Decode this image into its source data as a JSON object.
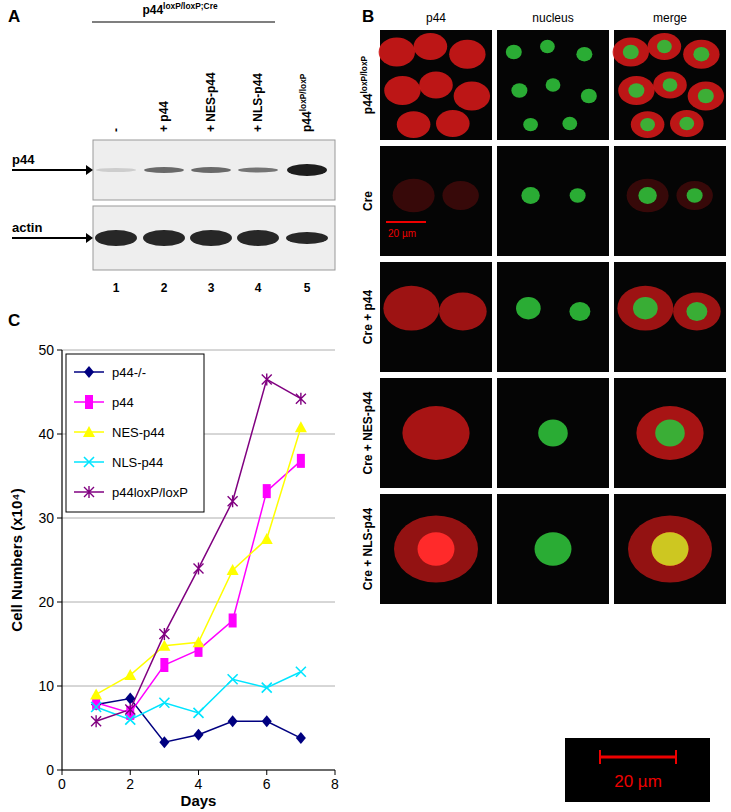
{
  "panels": {
    "a": {
      "label": "A",
      "header": {
        "text": "p44",
        "sup": "loxP/loxP;Cre"
      },
      "lanes": [
        {
          "text": "-"
        },
        {
          "text": "+ p44"
        },
        {
          "text": "+ NES-p44"
        },
        {
          "text": "+ NLS-p44"
        },
        {
          "text": "p44",
          "sup": "loxP/loxP"
        }
      ],
      "rows": [
        "p44",
        "actin"
      ],
      "lane_numbers": [
        1,
        2,
        3,
        4,
        5
      ]
    },
    "b": {
      "label": "B",
      "columns": [
        "p44",
        "nucleus",
        "merge"
      ],
      "rows": [
        {
          "text": "p44",
          "sup": "loxP/loxP"
        },
        {
          "text": "Cre"
        },
        {
          "text": "Cre + p44"
        },
        {
          "text": "Cre + NES-p44"
        },
        {
          "text": "Cre + NLS-p44"
        }
      ],
      "scale_bar": "20 µm"
    },
    "c": {
      "label": "C"
    }
  },
  "chart_data": {
    "type": "line",
    "x_label": "Days",
    "y_label": "Cell Numbers (x10⁴)",
    "x": [
      1,
      2,
      3,
      4,
      5,
      6,
      7
    ],
    "xlim": [
      0,
      8
    ],
    "xticks": [
      0,
      2,
      4,
      6,
      8
    ],
    "ylim": [
      0,
      50
    ],
    "yticks": [
      0,
      10,
      20,
      30,
      40,
      50
    ],
    "grid": true,
    "legend": "upper left",
    "series": [
      {
        "name": "p44-/-",
        "color": "#000080",
        "marker": "diamond",
        "line_style": "solid",
        "values": [
          7.8,
          8.5,
          3.3,
          4.2,
          5.8,
          5.8,
          3.8
        ]
      },
      {
        "name": "p44",
        "color": "#ff00ff",
        "marker": "square",
        "line_style": "solid",
        "values": [
          8,
          6.8,
          12.5,
          14.3,
          17.8,
          33.2,
          36.8
        ]
      },
      {
        "name": "NES-p44",
        "color": "#ffff00",
        "marker": "triangle",
        "line_style": "solid",
        "values": [
          9,
          11.3,
          14.8,
          15.2,
          23.8,
          27.5,
          40.8
        ]
      },
      {
        "name": "NLS-p44",
        "color": "#00e5ff",
        "marker": "x",
        "line_style": "solid",
        "values": [
          7.5,
          6,
          8,
          6.8,
          10.8,
          9.8,
          11.7
        ]
      },
      {
        "name": "p44loxP/loxP",
        "color": "#800080",
        "marker": "star",
        "line_style": "solid",
        "values": [
          5.8,
          7.2,
          16.2,
          24,
          32,
          46.5,
          44.2
        ]
      }
    ]
  }
}
